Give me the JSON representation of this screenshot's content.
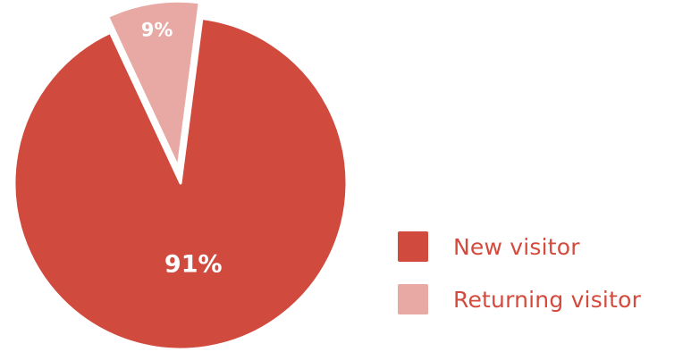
{
  "chart_data": {
    "type": "pie",
    "categories": [
      "New visitor",
      "Returning visitor"
    ],
    "values": [
      91,
      9
    ],
    "labels": [
      "91%",
      "9%"
    ],
    "colors": [
      "#d04a3e",
      "#e8a9a4"
    ],
    "exploded": [
      false,
      true
    ],
    "title": "",
    "legend_position": "right",
    "legend": [
      {
        "label": "New visitor",
        "color": "#d04a3e"
      },
      {
        "label": "Returning visitor",
        "color": "#e8a9a4"
      }
    ]
  }
}
